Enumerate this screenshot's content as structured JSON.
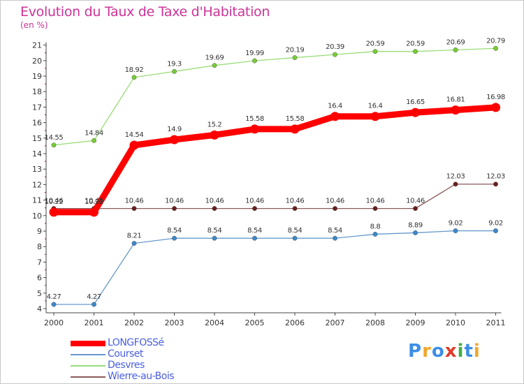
{
  "title": "Evolution du Taux de Taxe d'Habitation",
  "unit": "(en %)",
  "brand": {
    "text": "Proxiti",
    "letter_colors": [
      "#3d8ee6",
      "#f2a62c",
      "#3d8ee6",
      "#e23a2a",
      "#3cb043",
      "#3d8ee6",
      "#f2a62c"
    ]
  },
  "chart_data": {
    "type": "line",
    "x": [
      "2000",
      "2001",
      "2002",
      "2003",
      "2004",
      "2005",
      "2006",
      "2007",
      "2008",
      "2009",
      "2010",
      "2011"
    ],
    "ylim": [
      4,
      21
    ],
    "yticks": [
      "4",
      "5",
      "6",
      "7",
      "8",
      "9",
      "10",
      "11",
      "12",
      "13",
      "14",
      "15",
      "16",
      "17",
      "18",
      "19",
      "20",
      "21"
    ],
    "grid": false,
    "legend_position": "bottom-left",
    "series": [
      {
        "name": "LONGFOSSé",
        "color": "#ff0000",
        "marker_color": "#ff0000",
        "emphasis": true,
        "values": [
          10.22,
          10.22,
          14.54,
          14.9,
          15.2,
          15.58,
          15.58,
          16.4,
          16.4,
          16.65,
          16.81,
          16.98
        ],
        "labels": [
          "10.22",
          "10.22",
          "14.54",
          "14.9",
          "15.2",
          "15.58",
          "15.58",
          "16.4",
          "16.4",
          "16.65",
          "16.81",
          "16.98"
        ]
      },
      {
        "name": "Courset",
        "color": "#6699cc",
        "marker_color": "#3b88c9",
        "emphasis": false,
        "values": [
          4.27,
          4.27,
          8.21,
          8.54,
          8.54,
          8.54,
          8.54,
          8.54,
          8.8,
          8.89,
          9.02,
          9.02
        ],
        "labels": [
          "4.27",
          "4.27",
          "8.21",
          "8.54",
          "8.54",
          "8.54",
          "8.54",
          "8.54",
          "8.8",
          "8.89",
          "9.02",
          "9.02"
        ]
      },
      {
        "name": "Desvres",
        "color": "#99dd77",
        "marker_color": "#77cc33",
        "emphasis": false,
        "values": [
          14.55,
          14.84,
          18.92,
          19.3,
          19.69,
          19.99,
          20.19,
          20.39,
          20.59,
          20.59,
          20.69,
          20.79
        ],
        "labels": [
          "14.55",
          "14.84",
          "18.92",
          "19.3",
          "19.69",
          "19.99",
          "20.19",
          "20.39",
          "20.59",
          "20.59",
          "20.69",
          "20.79"
        ]
      },
      {
        "name": "Wierre-au-Bois",
        "color": "#8b5a5a",
        "marker_color": "#6a1f1f",
        "emphasis": false,
        "values": [
          10.46,
          10.46,
          10.46,
          10.46,
          10.46,
          10.46,
          10.46,
          10.46,
          10.46,
          10.46,
          12.03,
          12.03
        ],
        "labels": [
          "10.46",
          "10.46",
          "10.46",
          "10.46",
          "10.46",
          "10.46",
          "10.46",
          "10.46",
          "10.46",
          "10.46",
          "12.03",
          "12.03"
        ]
      }
    ]
  }
}
